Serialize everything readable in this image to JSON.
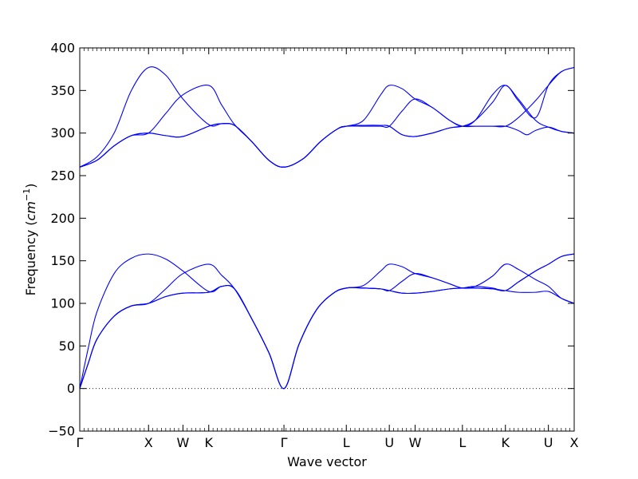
{
  "chart_data": {
    "type": "line",
    "title": "",
    "xlabel": "Wave vector",
    "ylabel": "Frequency",
    "ylabel_unit_base": "cm",
    "ylabel_unit_exp": "−1",
    "ylim": [
      -50,
      400
    ],
    "yticks": [
      "400",
      "350",
      "300",
      "250",
      "200",
      "150",
      "100",
      "50",
      "0",
      "−50"
    ],
    "ytick_values": [
      400,
      350,
      300,
      250,
      200,
      150,
      100,
      50,
      0,
      -50
    ],
    "xlim": [
      0,
      11.5
    ],
    "xticks": [
      {
        "label": "Γ",
        "pos": 0.0
      },
      {
        "label": "X",
        "pos": 1.6
      },
      {
        "label": "W",
        "pos": 2.4
      },
      {
        "label": "K",
        "pos": 3.0
      },
      {
        "label": "Γ",
        "pos": 4.75
      },
      {
        "label": "L",
        "pos": 6.2
      },
      {
        "label": "U",
        "pos": 7.2
      },
      {
        "label": "W",
        "pos": 7.8
      },
      {
        "label": "L",
        "pos": 8.9
      },
      {
        "label": "K",
        "pos": 9.9
      },
      {
        "label": "U",
        "pos": 10.9
      },
      {
        "label": "X",
        "pos": 11.5
      }
    ],
    "zero_line": {
      "y": 0,
      "style": "dotted"
    },
    "grid": false,
    "line_color": "#0000ff",
    "series": [
      {
        "values": [
          [
            0,
            260
          ],
          [
            0.4,
            272
          ],
          [
            0.8,
            300
          ],
          [
            1.2,
            350
          ],
          [
            1.6,
            377
          ],
          [
            2.0,
            368
          ],
          [
            2.4,
            340
          ],
          [
            3.0,
            310
          ],
          [
            3.3,
            311
          ],
          [
            3.6,
            309
          ],
          [
            4.0,
            290
          ],
          [
            4.4,
            268
          ],
          [
            4.75,
            260
          ],
          [
            5.2,
            270
          ],
          [
            5.6,
            290
          ],
          [
            6.0,
            305
          ],
          [
            6.2,
            308
          ],
          [
            6.6,
            315
          ],
          [
            7.0,
            345
          ],
          [
            7.2,
            356
          ],
          [
            7.5,
            352
          ],
          [
            7.8,
            340
          ],
          [
            8.2,
            330
          ],
          [
            8.6,
            315
          ],
          [
            8.9,
            308
          ],
          [
            9.2,
            315
          ],
          [
            9.6,
            345
          ],
          [
            9.9,
            356
          ],
          [
            10.2,
            340
          ],
          [
            10.6,
            315
          ],
          [
            10.9,
            307
          ],
          [
            11.2,
            302
          ],
          [
            11.5,
            300
          ]
        ]
      },
      {
        "values": [
          [
            0,
            260
          ],
          [
            0.4,
            268
          ],
          [
            0.8,
            285
          ],
          [
            1.2,
            297
          ],
          [
            1.6,
            300
          ],
          [
            2.0,
            323
          ],
          [
            2.4,
            345
          ],
          [
            3.0,
            356
          ],
          [
            3.3,
            333
          ],
          [
            3.6,
            310
          ],
          [
            4.0,
            290
          ],
          [
            4.4,
            268
          ],
          [
            4.75,
            260
          ],
          [
            5.2,
            270
          ],
          [
            5.6,
            290
          ],
          [
            6.0,
            305
          ],
          [
            6.2,
            308
          ],
          [
            6.6,
            308
          ],
          [
            7.0,
            308
          ],
          [
            7.2,
            308
          ],
          [
            7.5,
            326
          ],
          [
            7.8,
            340
          ],
          [
            8.2,
            330
          ],
          [
            8.6,
            315
          ],
          [
            8.9,
            308
          ],
          [
            9.2,
            308
          ],
          [
            9.6,
            308
          ],
          [
            9.9,
            308
          ],
          [
            10.2,
            303
          ],
          [
            10.4,
            298
          ],
          [
            10.6,
            303
          ],
          [
            10.9,
            307
          ],
          [
            11.2,
            302
          ],
          [
            11.5,
            300
          ]
        ]
      },
      {
        "values": [
          [
            0,
            260
          ],
          [
            0.4,
            268
          ],
          [
            0.8,
            285
          ],
          [
            1.2,
            297
          ],
          [
            1.6,
            300
          ],
          [
            2.0,
            297
          ],
          [
            2.4,
            296
          ],
          [
            3.0,
            308
          ],
          [
            3.3,
            311
          ],
          [
            3.6,
            309
          ],
          [
            4.0,
            290
          ],
          [
            4.4,
            268
          ],
          [
            4.75,
            260
          ],
          [
            5.2,
            270
          ],
          [
            5.6,
            290
          ],
          [
            6.0,
            305
          ],
          [
            6.2,
            308
          ],
          [
            6.6,
            309
          ],
          [
            7.0,
            309
          ],
          [
            7.2,
            308
          ],
          [
            7.5,
            298
          ],
          [
            7.8,
            296
          ],
          [
            8.2,
            300
          ],
          [
            8.6,
            306
          ],
          [
            8.9,
            308
          ],
          [
            9.2,
            315
          ],
          [
            9.6,
            336
          ],
          [
            9.9,
            356
          ],
          [
            10.2,
            338
          ],
          [
            10.6,
            318
          ],
          [
            10.9,
            356
          ],
          [
            11.2,
            372
          ],
          [
            11.5,
            377
          ]
        ]
      },
      {
        "values": [
          [
            0,
            260
          ],
          [
            0.4,
            268
          ],
          [
            0.8,
            285
          ],
          [
            1.2,
            297
          ],
          [
            1.6,
            300
          ],
          [
            2.0,
            297
          ],
          [
            2.4,
            296
          ],
          [
            3.0,
            308
          ],
          [
            3.3,
            311
          ],
          [
            3.6,
            309
          ],
          [
            4.0,
            290
          ],
          [
            4.4,
            268
          ],
          [
            4.75,
            260
          ],
          [
            5.2,
            270
          ],
          [
            5.6,
            290
          ],
          [
            6.0,
            305
          ],
          [
            6.2,
            308
          ],
          [
            6.6,
            309
          ],
          [
            7.0,
            309
          ],
          [
            7.2,
            308
          ],
          [
            7.5,
            298
          ],
          [
            7.8,
            296
          ],
          [
            8.2,
            300
          ],
          [
            8.6,
            306
          ],
          [
            8.9,
            308
          ],
          [
            9.2,
            308
          ],
          [
            9.6,
            308
          ],
          [
            9.9,
            308
          ],
          [
            10.2,
            318
          ],
          [
            10.6,
            338
          ],
          [
            10.9,
            356
          ],
          [
            11.2,
            372
          ],
          [
            11.5,
            377
          ]
        ]
      },
      {
        "values": [
          [
            0,
            0
          ],
          [
            0.2,
            48
          ],
          [
            0.4,
            90
          ],
          [
            0.8,
            135
          ],
          [
            1.2,
            153
          ],
          [
            1.6,
            158
          ],
          [
            2.0,
            152
          ],
          [
            2.4,
            138
          ],
          [
            3.0,
            114
          ],
          [
            3.3,
            120
          ],
          [
            3.6,
            117
          ],
          [
            4.0,
            82
          ],
          [
            4.4,
            42
          ],
          [
            4.75,
            0
          ],
          [
            5.1,
            52
          ],
          [
            5.5,
            92
          ],
          [
            5.9,
            112
          ],
          [
            6.2,
            118
          ],
          [
            6.6,
            121
          ],
          [
            7.0,
            138
          ],
          [
            7.2,
            146
          ],
          [
            7.5,
            143
          ],
          [
            7.8,
            135
          ],
          [
            8.2,
            130
          ],
          [
            8.6,
            123
          ],
          [
            8.9,
            118
          ],
          [
            9.2,
            120
          ],
          [
            9.6,
            132
          ],
          [
            9.9,
            146
          ],
          [
            10.2,
            140
          ],
          [
            10.6,
            128
          ],
          [
            10.9,
            120
          ],
          [
            11.2,
            106
          ],
          [
            11.5,
            100
          ]
        ]
      },
      {
        "values": [
          [
            0,
            0
          ],
          [
            0.2,
            30
          ],
          [
            0.4,
            58
          ],
          [
            0.8,
            85
          ],
          [
            1.2,
            97
          ],
          [
            1.6,
            100
          ],
          [
            2.0,
            117
          ],
          [
            2.4,
            135
          ],
          [
            3.0,
            146
          ],
          [
            3.3,
            133
          ],
          [
            3.6,
            117
          ],
          [
            4.0,
            82
          ],
          [
            4.4,
            42
          ],
          [
            4.75,
            0
          ],
          [
            5.1,
            52
          ],
          [
            5.5,
            92
          ],
          [
            5.9,
            112
          ],
          [
            6.2,
            118
          ],
          [
            6.6,
            118
          ],
          [
            7.0,
            117
          ],
          [
            7.2,
            115
          ],
          [
            7.5,
            126
          ],
          [
            7.8,
            135
          ],
          [
            8.2,
            130
          ],
          [
            8.6,
            123
          ],
          [
            8.9,
            118
          ],
          [
            9.2,
            118
          ],
          [
            9.6,
            117
          ],
          [
            9.9,
            115
          ],
          [
            10.2,
            113
          ],
          [
            10.6,
            113
          ],
          [
            10.9,
            114
          ],
          [
            11.2,
            106
          ],
          [
            11.5,
            100
          ]
        ]
      },
      {
        "values": [
          [
            0,
            0
          ],
          [
            0.2,
            30
          ],
          [
            0.4,
            58
          ],
          [
            0.8,
            85
          ],
          [
            1.2,
            97
          ],
          [
            1.6,
            100
          ],
          [
            2.0,
            108
          ],
          [
            2.4,
            112
          ],
          [
            3.0,
            113
          ],
          [
            3.3,
            120
          ],
          [
            3.6,
            117
          ],
          [
            4.0,
            82
          ],
          [
            4.4,
            42
          ],
          [
            4.75,
            0
          ],
          [
            5.1,
            52
          ],
          [
            5.5,
            92
          ],
          [
            5.9,
            112
          ],
          [
            6.2,
            118
          ],
          [
            6.6,
            118
          ],
          [
            7.0,
            117
          ],
          [
            7.2,
            115
          ],
          [
            7.5,
            112
          ],
          [
            7.8,
            112
          ],
          [
            8.2,
            114
          ],
          [
            8.6,
            117
          ],
          [
            8.9,
            118
          ],
          [
            9.2,
            120
          ],
          [
            9.6,
            118
          ],
          [
            9.9,
            115
          ],
          [
            10.2,
            125
          ],
          [
            10.6,
            138
          ],
          [
            10.9,
            146
          ],
          [
            11.2,
            155
          ],
          [
            11.5,
            158
          ]
        ]
      },
      {
        "values": [
          [
            0,
            0
          ],
          [
            0.2,
            30
          ],
          [
            0.4,
            58
          ],
          [
            0.8,
            85
          ],
          [
            1.2,
            97
          ],
          [
            1.6,
            100
          ],
          [
            2.0,
            108
          ],
          [
            2.4,
            112
          ],
          [
            3.0,
            113
          ],
          [
            3.3,
            120
          ],
          [
            3.6,
            117
          ],
          [
            4.0,
            82
          ],
          [
            4.4,
            42
          ],
          [
            4.75,
            0
          ],
          [
            5.1,
            52
          ],
          [
            5.5,
            92
          ],
          [
            5.9,
            112
          ],
          [
            6.2,
            118
          ],
          [
            6.6,
            118
          ],
          [
            7.0,
            117
          ],
          [
            7.2,
            115
          ],
          [
            7.5,
            112
          ],
          [
            7.8,
            112
          ],
          [
            8.2,
            114
          ],
          [
            8.6,
            117
          ],
          [
            8.9,
            118
          ],
          [
            9.2,
            118
          ],
          [
            9.6,
            117
          ],
          [
            9.9,
            115
          ],
          [
            10.2,
            125
          ],
          [
            10.6,
            138
          ],
          [
            10.9,
            146
          ],
          [
            11.2,
            155
          ],
          [
            11.5,
            158
          ]
        ]
      }
    ]
  }
}
